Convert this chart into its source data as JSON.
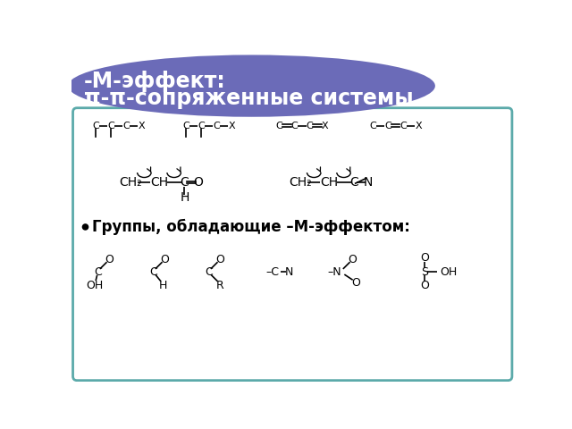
{
  "title_line1": "-М-эффект:",
  "title_line2": "π-π-сопряженные системы",
  "title_bg_color": "#6B6BB8",
  "title_text_color": "#ffffff",
  "bg_color": "#ffffff",
  "border_color": "#5BAAAA",
  "bullet_text": "Группы, обладающие –М-эффектом:",
  "font_size_title": 17,
  "font_size_body": 11
}
